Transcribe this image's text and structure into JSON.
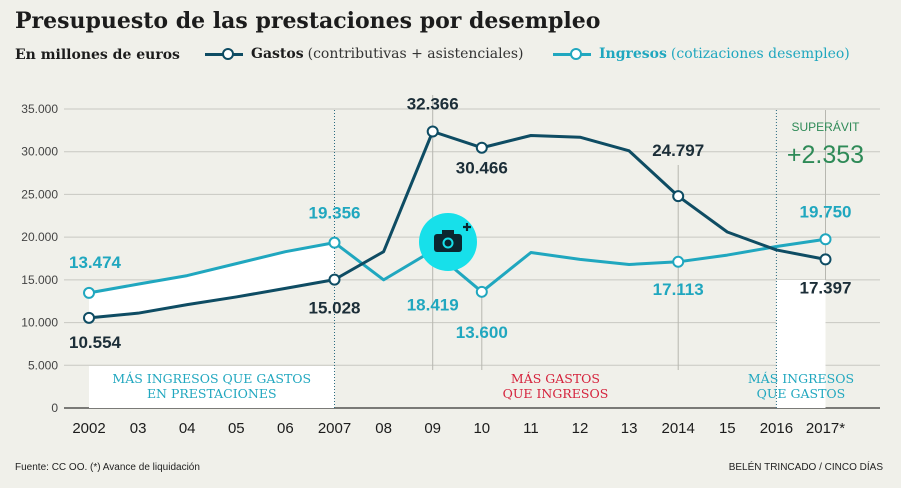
{
  "title": "Presupuesto de las prestaciones por desempleo",
  "subtitle": "En millones de euros",
  "legend": {
    "gastos_name": "Gastos",
    "gastos_desc": "(contributivas + asistenciales)",
    "ingresos_name": "Ingresos",
    "ingresos_desc": "(cotizaciones desempleo)"
  },
  "colors": {
    "gastos": "#0e4c63",
    "ingresos": "#20a7bf",
    "band_red": "#d5223c",
    "superavit": "#2e8a57"
  },
  "regions": [
    {
      "lines": [
        "MÁS INGRESOS QUE GASTOS",
        "EN PRESTACIONES"
      ]
    },
    {
      "lines": [
        "MÁS GASTOS",
        "QUE INGRESOS"
      ]
    },
    {
      "lines": [
        "MÁS INGRESOS",
        "QUE GASTOS"
      ]
    }
  ],
  "superavit": {
    "label": "SUPERÁVIT",
    "value": "+2.353"
  },
  "footer": {
    "source": "Fuente: CC OO. (*) Avance de liquidación",
    "credit": "BELÉN TRINCADO / CINCO DÍAS"
  },
  "photo_icon": "camera-plus-icon",
  "chart_data": {
    "type": "line",
    "categories": [
      "2002",
      "03",
      "04",
      "05",
      "06",
      "2007",
      "08",
      "09",
      "10",
      "11",
      "12",
      "13",
      "2014",
      "15",
      "2016",
      "2017*"
    ],
    "ylim": [
      0,
      35000
    ],
    "yticks": [
      "0",
      "5.000",
      "10.000",
      "15.000",
      "20.000",
      "25.000",
      "30.000",
      "35.000"
    ],
    "series": [
      {
        "name": "Gastos",
        "values": [
          10554,
          11100,
          12100,
          13000,
          14000,
          15028,
          18300,
          32366,
          30466,
          31900,
          31700,
          30100,
          24797,
          20600,
          18500,
          17397
        ]
      },
      {
        "name": "Ingresos",
        "values": [
          13474,
          14500,
          15500,
          16900,
          18300,
          19356,
          15000,
          18419,
          13600,
          18200,
          17400,
          16800,
          17113,
          17900,
          18900,
          19750
        ]
      }
    ],
    "annotations": [
      {
        "series": 0,
        "index": 0,
        "text": "10.554"
      },
      {
        "series": 0,
        "index": 5,
        "text": "15.028"
      },
      {
        "series": 0,
        "index": 7,
        "text": "32.366"
      },
      {
        "series": 0,
        "index": 8,
        "text": "30.466"
      },
      {
        "series": 0,
        "index": 12,
        "text": "24.797"
      },
      {
        "series": 0,
        "index": 15,
        "text": "17.397"
      },
      {
        "series": 1,
        "index": 0,
        "text": "13.474"
      },
      {
        "series": 1,
        "index": 5,
        "text": "19.356"
      },
      {
        "series": 1,
        "index": 7,
        "text": "18.419"
      },
      {
        "series": 1,
        "index": 8,
        "text": "13.600"
      },
      {
        "series": 1,
        "index": 12,
        "text": "17.113"
      },
      {
        "series": 1,
        "index": 15,
        "text": "19.750"
      }
    ]
  }
}
